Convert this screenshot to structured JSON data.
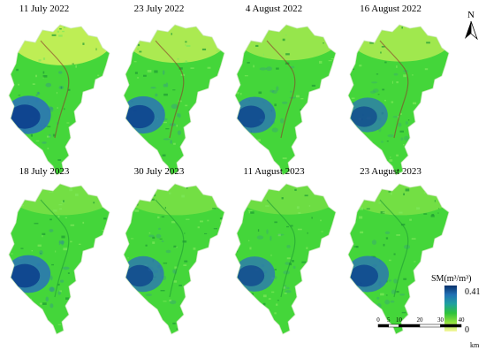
{
  "panels": [
    {
      "date": "11 July 2022",
      "wetness": 0.95,
      "yellowness": 0.85
    },
    {
      "date": "23 July 2022",
      "wetness": 0.85,
      "yellowness": 0.65
    },
    {
      "date": "4 August 2022",
      "wetness": 0.75,
      "yellowness": 0.45
    },
    {
      "date": "16 August 2022",
      "wetness": 0.6,
      "yellowness": 0.55
    },
    {
      "date": "18 July 2023",
      "wetness": 0.9,
      "yellowness": 0.1
    },
    {
      "date": "30 July 2023",
      "wetness": 0.7,
      "yellowness": 0.1
    },
    {
      "date": "11 August 2023",
      "wetness": 0.65,
      "yellowness": 0.05
    },
    {
      "date": "23 August 2023",
      "wetness": 0.75,
      "yellowness": 0.1
    }
  ],
  "north_arrow": {
    "label": "N"
  },
  "legend": {
    "title": "SM(m³/m³)",
    "max_label": "0.41",
    "min_label": "0",
    "colors": [
      "#08306b",
      "#2171b5",
      "#1fa0a0",
      "#2dc23a",
      "#8fe03c",
      "#f7f7a0"
    ]
  },
  "scale_bar": {
    "ticks": [
      "0",
      "5",
      "10",
      "20",
      "30",
      "40"
    ],
    "tick_values": [
      0,
      5,
      10,
      20,
      30,
      40
    ],
    "unit": "km"
  },
  "colors": {
    "bright_green": "#44d63a",
    "dark_green": "#1e9a34",
    "yellow": "#d6f25a",
    "dark_blue": "#0b3d8c",
    "mid_blue": "#2a72b8",
    "river": "#8b3a2a"
  }
}
